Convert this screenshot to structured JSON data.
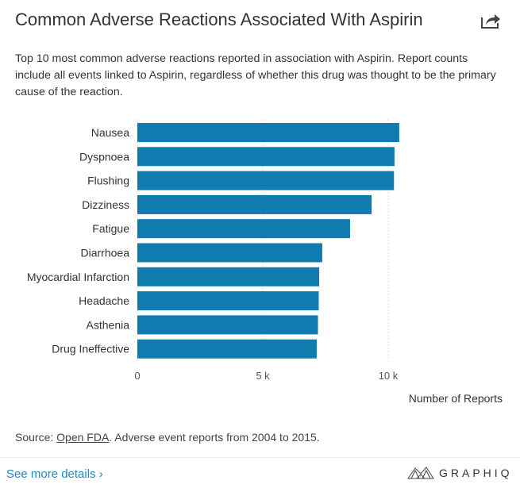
{
  "header": {
    "title": "Common Adverse Reactions Associated With Aspirin",
    "share_icon": "share-icon"
  },
  "subtitle": "Top 10 most common adverse reactions reported in association with Aspirin. Report counts include all events linked to Aspirin, regardless of whether this drug was thought to be the primary cause of the reaction.",
  "chart_data": {
    "type": "bar",
    "orientation": "horizontal",
    "categories": [
      "Nausea",
      "Dyspnoea",
      "Flushing",
      "Dizziness",
      "Fatigue",
      "Diarrhoea",
      "Myocardial Infarction",
      "Headache",
      "Asthenia",
      "Drug Ineffective"
    ],
    "values": [
      10440,
      10250,
      10230,
      9340,
      8480,
      7370,
      7250,
      7230,
      7200,
      7150
    ],
    "xlabel": "Number of Reports",
    "xlim": [
      0,
      10800
    ],
    "xticks": [
      {
        "value": 0,
        "label": "0"
      },
      {
        "value": 5000,
        "label": "5 k"
      },
      {
        "value": 10000,
        "label": "10 k"
      }
    ],
    "grid": true,
    "bar_color": "#0f7bae"
  },
  "source": {
    "prefix": "Source: ",
    "link": "Open FDA",
    "suffix": ". Adverse event reports from 2004 to 2015."
  },
  "footer": {
    "more_link": "See more details ›",
    "logo": "GRAPHIQ"
  }
}
